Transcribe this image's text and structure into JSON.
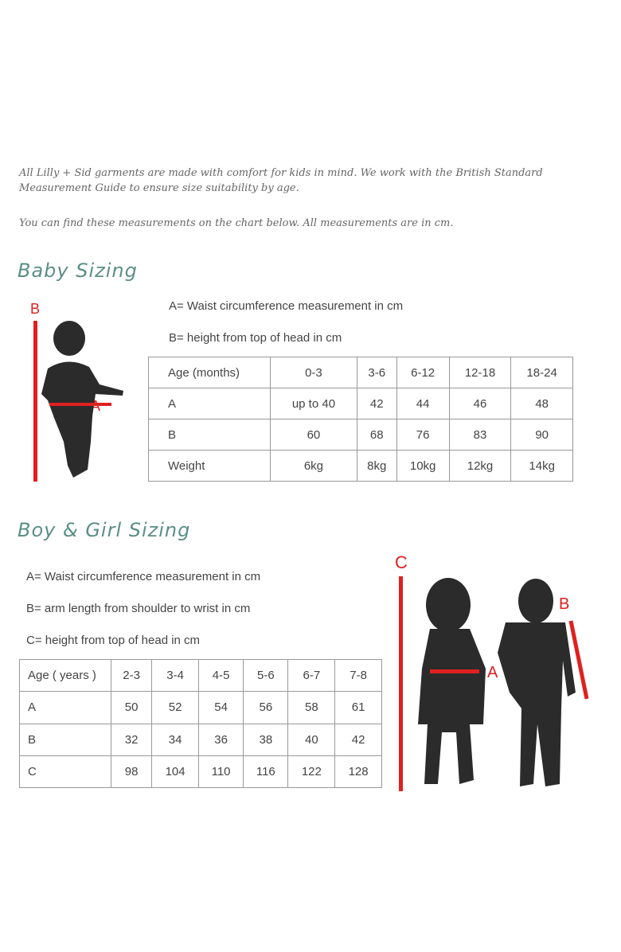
{
  "intro": {
    "paragraph1": "All Lilly + Sid garments are made with comfort for kids in mind. We work with the British Standard Measurement Guide to ensure size suitability by age.",
    "paragraph2": "You can find these measurements on the chart below. All measurements are in cm."
  },
  "baby": {
    "title": "Baby Sizing",
    "note_a": "A= Waist circumference measurement in cm",
    "note_b": "B= height from top of head in cm",
    "marker_a": "A",
    "marker_b": "B",
    "table": {
      "header": [
        "Age (months)",
        "0-3",
        "3-6",
        "6-12",
        "12-18",
        "18-24"
      ],
      "rows": [
        [
          "A",
          "up to 40",
          "42",
          "44",
          "46",
          "48"
        ],
        [
          "B",
          "60",
          "68",
          "76",
          "83",
          "90"
        ],
        [
          "Weight",
          "6kg",
          "8kg",
          "10kg",
          "12kg",
          "14kg"
        ]
      ]
    }
  },
  "kids": {
    "title": "Boy & Girl Sizing",
    "note_a": "A= Waist circumference measurement in cm",
    "note_b": "B= arm length from shoulder to wrist in cm",
    "note_c": "C= height from top of head in cm",
    "marker_a": "A",
    "marker_b": "B",
    "marker_c": "C",
    "table": {
      "header": [
        "Age ( years )",
        "2-3",
        "3-4",
        "4-5",
        "5-6",
        "6-7",
        "7-8"
      ],
      "rows": [
        [
          "A",
          "50",
          "52",
          "54",
          "56",
          "58",
          "61"
        ],
        [
          "B",
          "32",
          "34",
          "36",
          "38",
          "40",
          "42"
        ],
        [
          "C",
          "98",
          "104",
          "110",
          "116",
          "122",
          "128"
        ]
      ]
    }
  },
  "colors": {
    "accent": "#e02020",
    "heading": "#5b8f86",
    "silhouette": "#2b2b2b"
  }
}
